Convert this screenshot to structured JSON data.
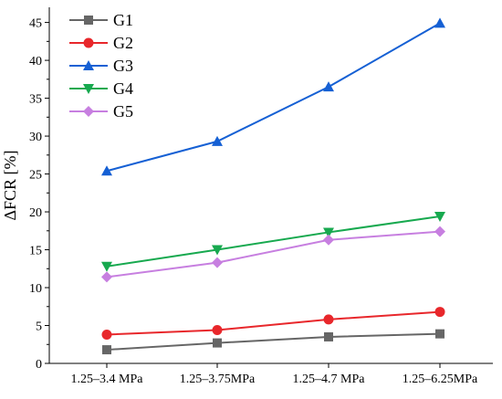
{
  "chart_data": {
    "type": "line",
    "title": "",
    "xlabel": "",
    "ylabel": "ΔFCR [%]",
    "ylim": [
      0,
      47
    ],
    "yticks": [
      0,
      5,
      10,
      15,
      20,
      25,
      30,
      35,
      40,
      45
    ],
    "grid": false,
    "legend_position": "top-left",
    "categories": [
      "1.25–3.4 MPa",
      "1.25–3.75MPa",
      "1.25–4.7 MPa",
      "1.25–6.25MPa"
    ],
    "series": [
      {
        "name": "G1",
        "color": "#666666",
        "marker": "square",
        "values": [
          1.8,
          2.7,
          3.5,
          3.9
        ]
      },
      {
        "name": "G2",
        "color": "#e8272b",
        "marker": "circle",
        "values": [
          3.8,
          4.4,
          5.8,
          6.8
        ]
      },
      {
        "name": "G3",
        "color": "#1560d4",
        "marker": "triangle-up",
        "values": [
          25.4,
          29.3,
          36.5,
          44.9
        ]
      },
      {
        "name": "G4",
        "color": "#17a94f",
        "marker": "triangle-down",
        "values": [
          12.8,
          15.0,
          17.3,
          19.4
        ]
      },
      {
        "name": "G5",
        "color": "#c77fe0",
        "marker": "diamond",
        "values": [
          11.4,
          13.3,
          16.3,
          17.4
        ]
      }
    ]
  }
}
